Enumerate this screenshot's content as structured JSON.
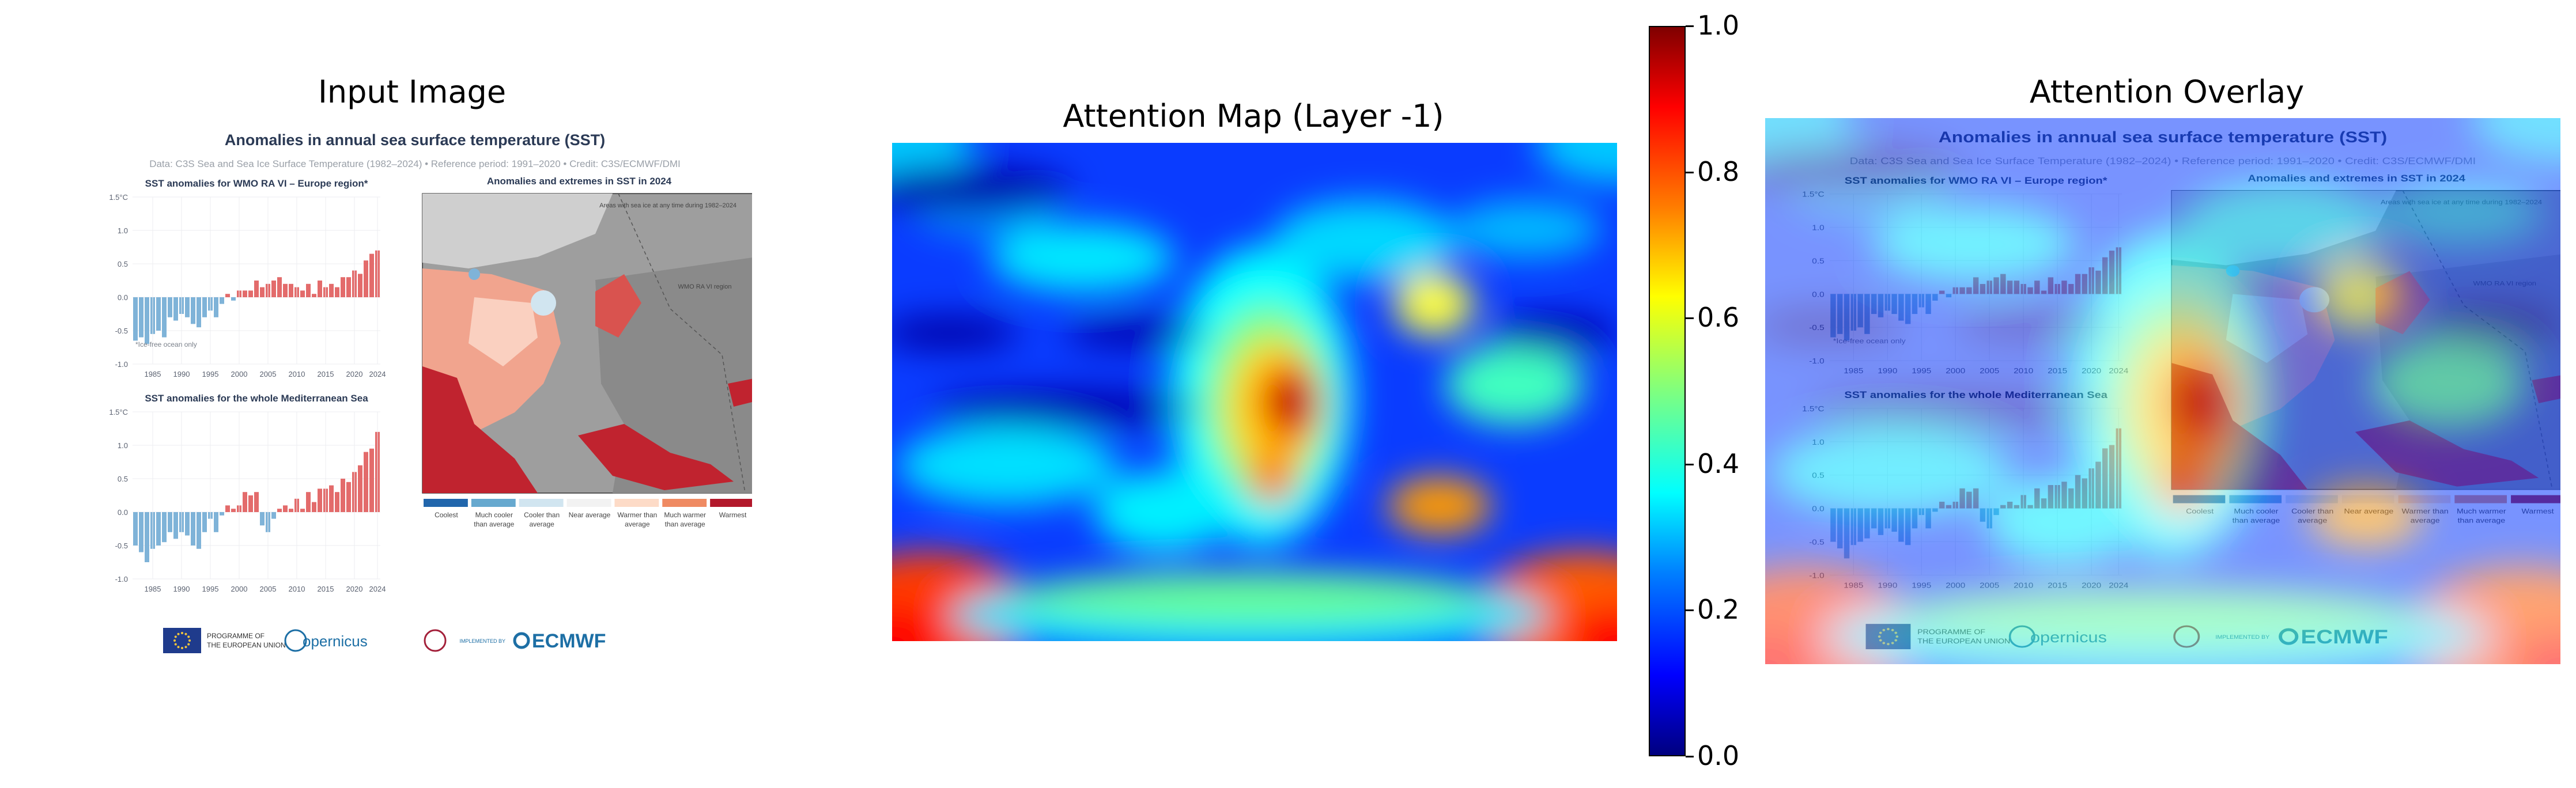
{
  "figure": {
    "panel_titles": [
      "Input Image",
      "Attention Map (Layer -1)",
      "Attention Overlay"
    ]
  },
  "colorbar": {
    "ticks": [
      "0.0",
      "0.2",
      "0.4",
      "0.6",
      "0.8",
      "1.0"
    ],
    "colormap": "jet",
    "range": [
      0.0,
      1.0
    ]
  },
  "infographic": {
    "title": "Anomalies in annual sea surface temperature (SST)",
    "subtitle": "Data: C3S Sea and Sea Ice Surface Temperature (1982–2024) • Reference period: 1991–2020 • Credit: C3S/ECMWF/DMI",
    "chart_europe_title": "SST anomalies for WMO RA VI – Europe region*",
    "chart_med_title": "SST anomalies for the whole Mediterranean Sea",
    "map_title": "Anomalies and extremes in SST in 2024",
    "footnote": "*Ice-free ocean only",
    "map_annotation_ice": "Areas with sea ice at any time during 1982–2024",
    "map_annotation_region": "WMO RA VI region",
    "legend": [
      "Coolest",
      "Much cooler than average",
      "Cooler than average",
      "Near average",
      "Warmer than average",
      "Much warmer than average",
      "Warmest"
    ],
    "legend_colors": [
      "#2166ac",
      "#67a9cf",
      "#d1e5f0",
      "#ffffff",
      "#fddbc7",
      "#ef8a62",
      "#b2182b"
    ],
    "europe_yticks": [
      "1.5°C",
      "1.0",
      "0.5",
      "0.0",
      "-0.5",
      "-1.0"
    ],
    "med_yticks": [
      "1.5°C",
      "1.0",
      "0.5",
      "0.0",
      "-0.5",
      "-1.0"
    ],
    "xticks": [
      "1985",
      "1990",
      "1995",
      "2000",
      "2005",
      "2010",
      "2015",
      "2020",
      "2024"
    ],
    "logos": {
      "eu": "PROGRAMME OF THE EUROPEAN UNION",
      "copernicus": "opernicus",
      "implemented_by": "IMPLEMENTED BY",
      "ecmwf": "ECMWF"
    }
  },
  "chart_data": [
    {
      "type": "bar",
      "title": "SST anomalies for WMO RA VI – Europe region*",
      "x": [
        1982,
        1983,
        1984,
        1985,
        1986,
        1987,
        1988,
        1989,
        1990,
        1991,
        1992,
        1993,
        1994,
        1995,
        1996,
        1997,
        1998,
        1999,
        2000,
        2001,
        2002,
        2003,
        2004,
        2005,
        2006,
        2007,
        2008,
        2009,
        2010,
        2011,
        2012,
        2013,
        2014,
        2015,
        2016,
        2017,
        2018,
        2019,
        2020,
        2021,
        2022,
        2023,
        2024
      ],
      "values": [
        -0.65,
        -0.6,
        -0.7,
        -0.55,
        -0.5,
        -0.6,
        -0.3,
        -0.35,
        -0.25,
        -0.3,
        -0.4,
        -0.45,
        -0.3,
        -0.2,
        -0.3,
        -0.1,
        0.05,
        -0.05,
        0.1,
        0.1,
        0.1,
        0.25,
        0.15,
        0.2,
        0.25,
        0.3,
        0.2,
        0.2,
        0.15,
        0.1,
        0.2,
        0.05,
        0.25,
        0.15,
        0.2,
        0.15,
        0.3,
        0.3,
        0.4,
        0.35,
        0.55,
        0.65,
        0.7
      ],
      "ylim": [
        -1.0,
        1.5
      ]
    },
    {
      "type": "bar",
      "title": "SST anomalies for the whole Mediterranean Sea",
      "x": [
        1982,
        1983,
        1984,
        1985,
        1986,
        1987,
        1988,
        1989,
        1990,
        1991,
        1992,
        1993,
        1994,
        1995,
        1996,
        1997,
        1998,
        1999,
        2000,
        2001,
        2002,
        2003,
        2004,
        2005,
        2006,
        2007,
        2008,
        2009,
        2010,
        2011,
        2012,
        2013,
        2014,
        2015,
        2016,
        2017,
        2018,
        2019,
        2020,
        2021,
        2022,
        2023,
        2024
      ],
      "values": [
        -0.5,
        -0.6,
        -0.75,
        -0.55,
        -0.5,
        -0.45,
        -0.3,
        -0.4,
        -0.3,
        -0.35,
        -0.5,
        -0.55,
        -0.3,
        -0.1,
        -0.3,
        -0.05,
        0.1,
        0.05,
        0.1,
        0.3,
        0.25,
        0.3,
        -0.2,
        -0.3,
        -0.1,
        0.05,
        0.1,
        0.05,
        0.2,
        0.05,
        0.3,
        0.15,
        0.35,
        0.35,
        0.4,
        0.3,
        0.5,
        0.45,
        0.6,
        0.7,
        0.9,
        0.95,
        1.2
      ],
      "ylim": [
        -1.0,
        1.5
      ]
    }
  ]
}
